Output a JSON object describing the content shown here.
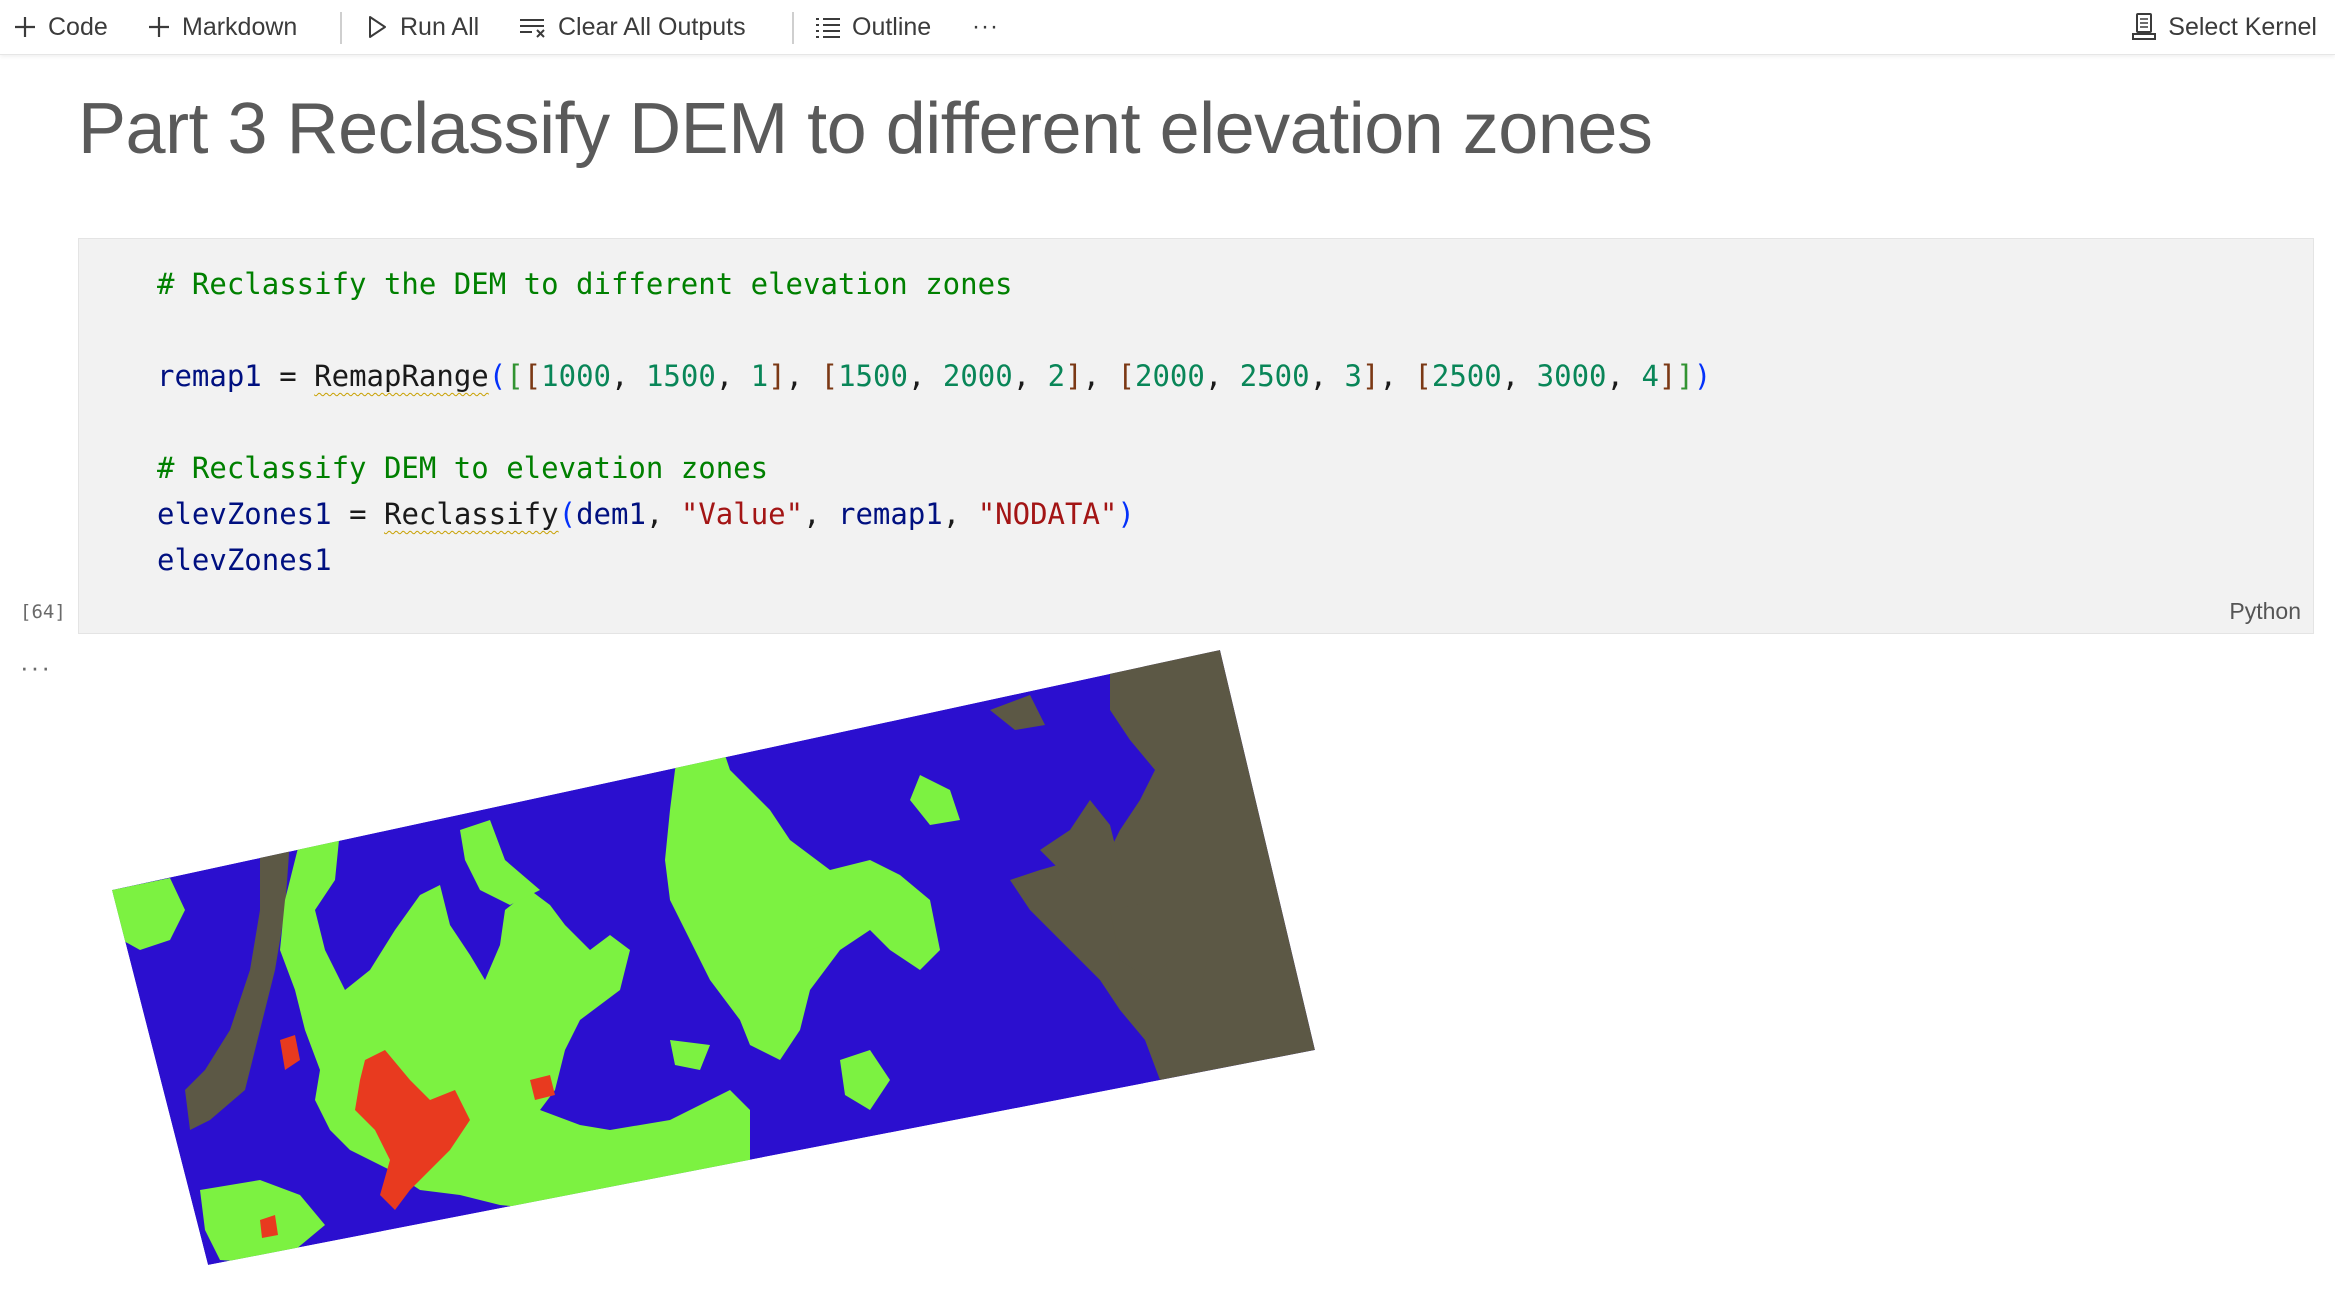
{
  "toolbar": {
    "code_label": "Code",
    "markdown_label": "Markdown",
    "run_all_label": "Run All",
    "clear_outputs_label": "Clear All Outputs",
    "outline_label": "Outline",
    "more_label": "···",
    "select_kernel_label": "Select Kernel"
  },
  "heading": "Part 3 Reclassify DEM to different elevation zones",
  "cell": {
    "execution_count": "[64]",
    "language": "Python",
    "code_lines": [
      "# Reclassify the DEM to different elevation zones",
      "",
      "remap1 = RemapRange([[1000, 1500, 1], [1500, 2000, 2], [2000, 2500, 3], [2500, 3000, 4]])",
      "",
      "# Reclassify DEM to elevation zones",
      "elevZones1 = Reclassify(dem1, \"Value\", remap1, \"NODATA\")",
      "elevZones1"
    ]
  },
  "output": {
    "dots": "···",
    "image": "reclassified-elevation-zones-raster",
    "zone_colors": {
      "zone1": "#5c5845",
      "zone2": "#2b0fcf",
      "zone3": "#7cf241",
      "zone4": "#e83a1f"
    }
  }
}
